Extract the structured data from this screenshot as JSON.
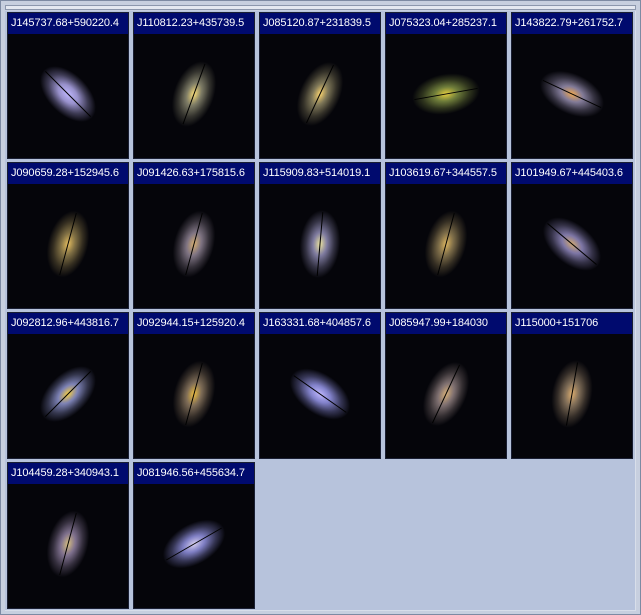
{
  "galaxies": [
    {
      "id": "J145737.68+590220.4",
      "color": "#a8a0e0",
      "core": "#c0b8ff",
      "angle": 45
    },
    {
      "id": "J110812.23+435739.5",
      "color": "#8a8870",
      "core": "#ffe27a",
      "angle": -70
    },
    {
      "id": "J085120.87+231839.5",
      "color": "#8a8260",
      "core": "#ffd870",
      "angle": -65
    },
    {
      "id": "J075323.04+285237.1",
      "color": "#7a8a40",
      "core": "#e8d040",
      "angle": -10
    },
    {
      "id": "J143822.79+261752.7",
      "color": "#9088a8",
      "core": "#f0a850",
      "angle": 25
    },
    {
      "id": "J090659.28+152945.6",
      "color": "#8c7a4a",
      "core": "#e8c060",
      "angle": -75
    },
    {
      "id": "J091426.63+175815.6",
      "color": "#8c8090",
      "core": "#d8b070",
      "angle": -75
    },
    {
      "id": "J115909.83+514019.1",
      "color": "#8c88b0",
      "core": "#f0e8a0",
      "angle": -85
    },
    {
      "id": "J103619.67+344557.5",
      "color": "#8a7850",
      "core": "#e0b860",
      "angle": -75
    },
    {
      "id": "J101949.67+445403.6",
      "color": "#8c84b8",
      "core": "#d0a870",
      "angle": 40
    },
    {
      "id": "J092812.96+443816.7",
      "color": "#8a90c8",
      "core": "#f8d040",
      "angle": -45
    },
    {
      "id": "J092944.15+125920.4",
      "color": "#8c7860",
      "core": "#f0c040",
      "angle": -75
    },
    {
      "id": "J163331.68+404857.6",
      "color": "#9090e0",
      "core": "#c0b8ff",
      "angle": 35
    },
    {
      "id": "J085947.99+184030",
      "color": "#8c7c7c",
      "core": "#d8b078",
      "angle": -65
    },
    {
      "id": "J115000+151706",
      "color": "#8c7860",
      "core": "#e0b070",
      "angle": -80
    },
    {
      "id": "J104459.28+340943.1",
      "color": "#8c7c9c",
      "core": "#d8c080",
      "angle": -75
    },
    {
      "id": "J081946.56+455634.7",
      "color": "#8c8cd8",
      "core": "#d8d0f0",
      "angle": -30
    }
  ]
}
